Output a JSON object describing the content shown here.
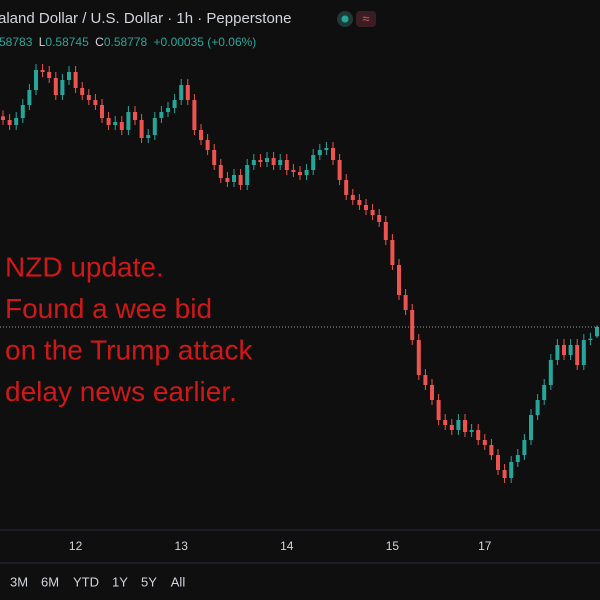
{
  "chart_data": {
    "type": "candlestick",
    "title": "aland Dollar / U.S. Dollar · 1h · Pepperstone",
    "ohlc_text": [
      "58783",
      "L",
      "0.58745",
      "C",
      "0.58778",
      "+0.00035 (+0.06%)"
    ],
    "annotation": [
      "NZD update.",
      "Found a wee bid",
      "on the Trump attack",
      "delay news earlier."
    ],
    "ranges": [
      "3M",
      "6M",
      "YTD",
      "1Y",
      "5Y",
      "All"
    ],
    "up_color": "#26a69a",
    "down_color": "#ef5350",
    "ylim": [
      0.58169,
      0.59759
    ],
    "categories": [
      null,
      null,
      null,
      null,
      null,
      null,
      null,
      null,
      null,
      null,
      null,
      "12",
      null,
      null,
      null,
      null,
      null,
      null,
      null,
      null,
      null,
      null,
      null,
      null,
      null,
      null,
      null,
      "13",
      null,
      null,
      null,
      null,
      null,
      null,
      null,
      null,
      null,
      null,
      null,
      null,
      null,
      null,
      null,
      "14",
      null,
      null,
      null,
      null,
      null,
      null,
      null,
      null,
      null,
      null,
      null,
      null,
      null,
      null,
      null,
      "15",
      null,
      null,
      null,
      null,
      null,
      null,
      null,
      null,
      null,
      null,
      null,
      null,
      null,
      "17",
      null,
      null,
      null,
      null,
      null,
      null,
      null,
      null,
      null,
      null,
      null,
      null,
      null,
      null,
      null,
      null,
      null
    ],
    "open": [
      0.5941,
      0.59399,
      0.59384,
      0.59405,
      0.59444,
      0.59489,
      0.59549,
      0.59543,
      0.59525,
      0.59474,
      0.59519,
      0.59543,
      0.59495,
      0.59474,
      0.59459,
      0.59444,
      0.59405,
      0.59384,
      0.59393,
      0.59369,
      0.59423,
      0.59399,
      0.59345,
      0.59354,
      0.59405,
      0.59423,
      0.59435,
      0.59459,
      0.59504,
      0.59459,
      0.59369,
      0.59339,
      0.59309,
      0.59264,
      0.59225,
      0.59213,
      0.59234,
      0.59204,
      0.59264,
      0.59279,
      0.59273,
      0.59285,
      0.59264,
      0.59279,
      0.59249,
      0.59243,
      0.59234,
      0.59249,
      0.59294,
      0.59309,
      0.59315,
      0.59279,
      0.59219,
      0.59174,
      0.59159,
      0.59144,
      0.59129,
      0.59114,
      0.59093,
      0.59039,
      0.58964,
      0.58874,
      0.58829,
      0.58739,
      0.58634,
      0.58604,
      0.58559,
      0.58499,
      0.58484,
      0.58469,
      0.58499,
      0.58463,
      0.58469,
      0.58439,
      0.58424,
      0.58394,
      0.58349,
      0.58325,
      0.58373,
      0.58394,
      0.58439,
      0.58514,
      0.58559,
      0.58604,
      0.58679,
      0.58724,
      0.58694,
      0.58724,
      0.58664,
      0.58739,
      0.5875
    ],
    "high": [
      0.59428,
      0.59417,
      0.59423,
      0.59462,
      0.59507,
      0.59567,
      0.59567,
      0.59561,
      0.59543,
      0.59537,
      0.59561,
      0.59561,
      0.59513,
      0.59492,
      0.59477,
      0.59462,
      0.59423,
      0.59411,
      0.59411,
      0.59441,
      0.59441,
      0.59417,
      0.59372,
      0.59423,
      0.59441,
      0.59453,
      0.59477,
      0.59522,
      0.59522,
      0.59477,
      0.59387,
      0.59357,
      0.59327,
      0.59282,
      0.59243,
      0.59252,
      0.59252,
      0.59282,
      0.59297,
      0.59297,
      0.59303,
      0.59303,
      0.59297,
      0.59297,
      0.59267,
      0.59261,
      0.59267,
      0.59312,
      0.59327,
      0.59333,
      0.59333,
      0.59297,
      0.59237,
      0.59192,
      0.59177,
      0.59162,
      0.59147,
      0.59132,
      0.59111,
      0.59057,
      0.58982,
      0.58892,
      0.58847,
      0.58757,
      0.58652,
      0.58622,
      0.58577,
      0.58517,
      0.58502,
      0.58517,
      0.58517,
      0.58487,
      0.58487,
      0.58457,
      0.58442,
      0.58412,
      0.58367,
      0.58391,
      0.58412,
      0.58457,
      0.58532,
      0.58577,
      0.58622,
      0.58697,
      0.58742,
      0.58742,
      0.58742,
      0.58742,
      0.58757,
      0.58761,
      0.58783
    ],
    "low": [
      0.59384,
      0.59369,
      0.59369,
      0.5939,
      0.59429,
      0.59474,
      0.59528,
      0.5951,
      0.59459,
      0.59459,
      0.59504,
      0.5948,
      0.59459,
      0.59444,
      0.59429,
      0.5939,
      0.59369,
      0.59369,
      0.59354,
      0.59354,
      0.59384,
      0.5933,
      0.5933,
      0.59339,
      0.5939,
      0.59408,
      0.5942,
      0.59444,
      0.59444,
      0.59354,
      0.59324,
      0.59294,
      0.59249,
      0.5921,
      0.59198,
      0.59198,
      0.59189,
      0.59189,
      0.59249,
      0.59258,
      0.59258,
      0.59249,
      0.59249,
      0.59234,
      0.59228,
      0.59219,
      0.59219,
      0.59234,
      0.59279,
      0.59294,
      0.59264,
      0.59204,
      0.59159,
      0.59144,
      0.59129,
      0.59114,
      0.59099,
      0.59078,
      0.59024,
      0.58949,
      0.58859,
      0.58814,
      0.58724,
      0.58619,
      0.58589,
      0.58544,
      0.58484,
      0.58469,
      0.58454,
      0.58454,
      0.58448,
      0.58448,
      0.58424,
      0.58409,
      0.58379,
      0.58334,
      0.5831,
      0.5831,
      0.58358,
      0.58379,
      0.58424,
      0.58499,
      0.58544,
      0.58589,
      0.58664,
      0.58679,
      0.58679,
      0.58649,
      0.58649,
      0.58724,
      0.58745
    ],
    "close": [
      0.59399,
      0.59384,
      0.59405,
      0.59444,
      0.59489,
      0.59549,
      0.59543,
      0.59525,
      0.59474,
      0.59519,
      0.59543,
      0.59495,
      0.59474,
      0.59459,
      0.59444,
      0.59405,
      0.59384,
      0.59393,
      0.59369,
      0.59423,
      0.59399,
      0.59345,
      0.59354,
      0.59405,
      0.59423,
      0.59435,
      0.59459,
      0.59504,
      0.59459,
      0.59369,
      0.59339,
      0.59309,
      0.59264,
      0.59225,
      0.59213,
      0.59234,
      0.59204,
      0.59264,
      0.59279,
      0.59273,
      0.59285,
      0.59264,
      0.59279,
      0.59249,
      0.59243,
      0.59234,
      0.59249,
      0.59294,
      0.59309,
      0.59315,
      0.59279,
      0.59219,
      0.59174,
      0.59159,
      0.59144,
      0.59129,
      0.59114,
      0.59093,
      0.59039,
      0.58964,
      0.58874,
      0.58829,
      0.58739,
      0.58634,
      0.58604,
      0.58559,
      0.58499,
      0.58484,
      0.58469,
      0.58499,
      0.58463,
      0.58469,
      0.58439,
      0.58424,
      0.58394,
      0.58349,
      0.58325,
      0.58373,
      0.58394,
      0.58439,
      0.58514,
      0.58559,
      0.58604,
      0.58679,
      0.58724,
      0.58694,
      0.58724,
      0.58664,
      0.58739,
      0.58743,
      0.58778
    ]
  }
}
